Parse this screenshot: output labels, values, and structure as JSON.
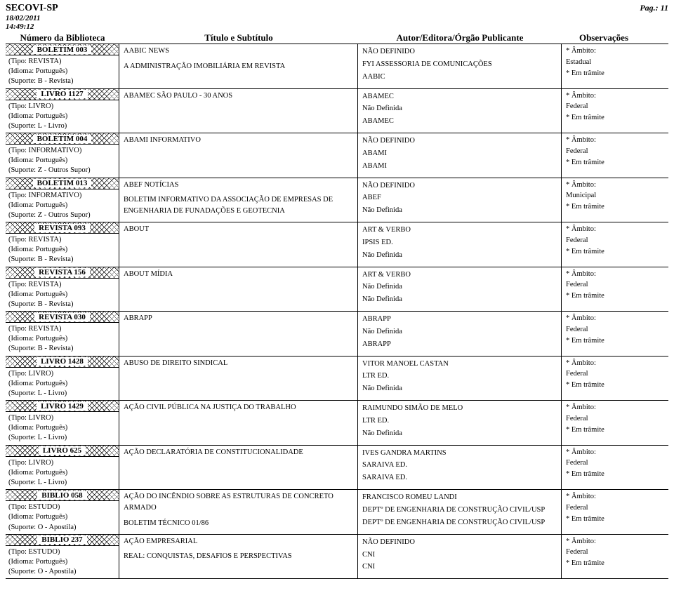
{
  "header": {
    "org": "SECOVI-SP",
    "date": "18/02/2011",
    "time": "14:49:12",
    "page": "Pag.: 11"
  },
  "columns": {
    "lib": "Número da Biblioteca",
    "title": "Título e Subtítulo",
    "author": "Autor/Editora/Órgão Publicante",
    "obs": "Observações"
  },
  "rows": [
    {
      "code": "BOLETIM 003",
      "meta": [
        "(Tipo: REVISTA)",
        "(Idioma: Português)",
        "(Suporte: B - Revista)"
      ],
      "titles": [
        "AABIC NEWS",
        "A ADMINISTRAÇÃO IMOBILIÁRIA EM REVISTA"
      ],
      "authors": [
        "NÃO DEFINIDO",
        "FYI ASSESSORIA DE COMUNICAÇÕES",
        "AABIC"
      ],
      "obs": [
        "* Âmbito:",
        "  Estadual",
        "* Em trâmite"
      ]
    },
    {
      "code": "LIVRO 1127",
      "meta": [
        "(Tipo: LIVRO)",
        "(Idioma: Português)",
        "(Suporte: L - Livro)"
      ],
      "titles": [
        "ABAMEC SÃO PAULO - 30 ANOS"
      ],
      "authors": [
        "ABAMEC",
        "Não Definida",
        "ABAMEC"
      ],
      "obs": [
        "* Âmbito:",
        "  Federal",
        "* Em trâmite"
      ]
    },
    {
      "code": "BOLETIM 004",
      "meta": [
        "(Tipo: INFORMATIVO)",
        "(Idioma: Português)",
        "(Suporte: Z - Outros Supor)"
      ],
      "titles": [
        "ABAMI INFORMATIVO"
      ],
      "authors": [
        "NÃO DEFINIDO",
        "ABAMI",
        "ABAMI"
      ],
      "obs": [
        "* Âmbito:",
        "  Federal",
        "* Em trâmite"
      ]
    },
    {
      "code": "BOLETIM 013",
      "meta": [
        "(Tipo: INFORMATIVO)",
        "(Idioma: Português)",
        "(Suporte: Z - Outros Supor)"
      ],
      "titles": [
        "ABEF NOTÍCIAS",
        "BOLETIM INFORMATIVO DA ASSOCIAÇÃO DE EMPRESAS DE ENGENHARIA DE FUNADAÇÕES E GEOTECNIA"
      ],
      "authors": [
        "NÃO DEFINIDO",
        "ABEF",
        "Não Definida"
      ],
      "obs": [
        "* Âmbito:",
        "  Municipal",
        "* Em trâmite"
      ]
    },
    {
      "code": "REVISTA 093",
      "meta": [
        "(Tipo: REVISTA)",
        "(Idioma: Português)",
        "(Suporte: B - Revista)"
      ],
      "titles": [
        "ABOUT"
      ],
      "authors": [
        "ART & VERBO",
        "IPSIS ED.",
        "Não Definida"
      ],
      "obs": [
        "* Âmbito:",
        "  Federal",
        "* Em trâmite"
      ]
    },
    {
      "code": "REVISTA 156",
      "meta": [
        "(Tipo: REVISTA)",
        "(Idioma: Português)",
        "(Suporte: B - Revista)"
      ],
      "titles": [
        "ABOUT MÍDIA"
      ],
      "authors": [
        "ART & VERBO",
        "Não Definida",
        "Não Definida"
      ],
      "obs": [
        "* Âmbito:",
        "  Federal",
        "* Em trâmite"
      ]
    },
    {
      "code": "REVISTA 030",
      "meta": [
        "(Tipo: REVISTA)",
        "(Idioma: Português)",
        "(Suporte: B - Revista)"
      ],
      "titles": [
        "ABRAPP"
      ],
      "authors": [
        "ABRAPP",
        "Não Definida",
        "ABRAPP"
      ],
      "obs": [
        "* Âmbito:",
        "  Federal",
        "* Em trâmite"
      ]
    },
    {
      "code": "LIVRO 1428",
      "meta": [
        "(Tipo: LIVRO)",
        "(Idioma: Português)",
        "(Suporte: L - Livro)"
      ],
      "titles": [
        "ABUSO DE DIREITO SINDICAL"
      ],
      "authors": [
        "VITOR MANOEL CASTAN",
        "LTR ED.",
        "Não Definida"
      ],
      "obs": [
        "* Âmbito:",
        "  Federal",
        "* Em trâmite"
      ]
    },
    {
      "code": "LIVRO 1429",
      "meta": [
        "(Tipo: LIVRO)",
        "(Idioma: Português)",
        "(Suporte: L - Livro)"
      ],
      "titles": [
        "AÇÃO CIVIL PÚBLICA NA JUSTIÇA DO TRABALHO"
      ],
      "authors": [
        "RAIMUNDO SIMÃO DE MELO",
        "LTR ED.",
        "Não Definida"
      ],
      "obs": [
        "* Âmbito:",
        "  Federal",
        "* Em trâmite"
      ]
    },
    {
      "code": "LIVRO 625",
      "meta": [
        "(Tipo: LIVRO)",
        "(Idioma: Português)",
        "(Suporte: L - Livro)"
      ],
      "titles": [
        "AÇÃO DECLARATÓRIA DE CONSTITUCIONALIDADE"
      ],
      "authors": [
        "IVES GANDRA MARTINS",
        "SARAIVA ED.",
        "SARAIVA ED."
      ],
      "obs": [
        "* Âmbito:",
        "  Federal",
        "* Em trâmite"
      ]
    },
    {
      "code": "BIBLIO 058",
      "meta": [
        "(Tipo: ESTUDO)",
        "(Idioma: Português)",
        "(Suporte: O - Apostila)"
      ],
      "titles": [
        "AÇÃO DO INCÊNDIO SOBRE AS ESTRUTURAS DE CONCRETO ARMADO",
        "BOLETIM TÉCNICO 01/86"
      ],
      "authors": [
        "FRANCISCO ROMEU LANDI",
        "DEPTº DE ENGENHARIA DE CONSTRUÇÃO CIVIL/USP",
        "DEPTº DE ENGENHARIA DE CONSTRUÇÃO CIVIL/USP"
      ],
      "obs": [
        "* Âmbito:",
        "  Federal",
        "* Em trâmite"
      ]
    },
    {
      "code": "BIBLIO 237",
      "meta": [
        "(Tipo: ESTUDO)",
        "(Idioma: Português)",
        "(Suporte: O - Apostila)"
      ],
      "titles": [
        "AÇÃO EMPRESARIAL",
        "REAL: CONQUISTAS, DESAFIOS E PERSPECTIVAS"
      ],
      "authors": [
        "NÃO DEFINIDO",
        "CNI",
        "CNI"
      ],
      "obs": [
        "* Âmbito:",
        "  Federal",
        "* Em trâmite"
      ]
    }
  ]
}
